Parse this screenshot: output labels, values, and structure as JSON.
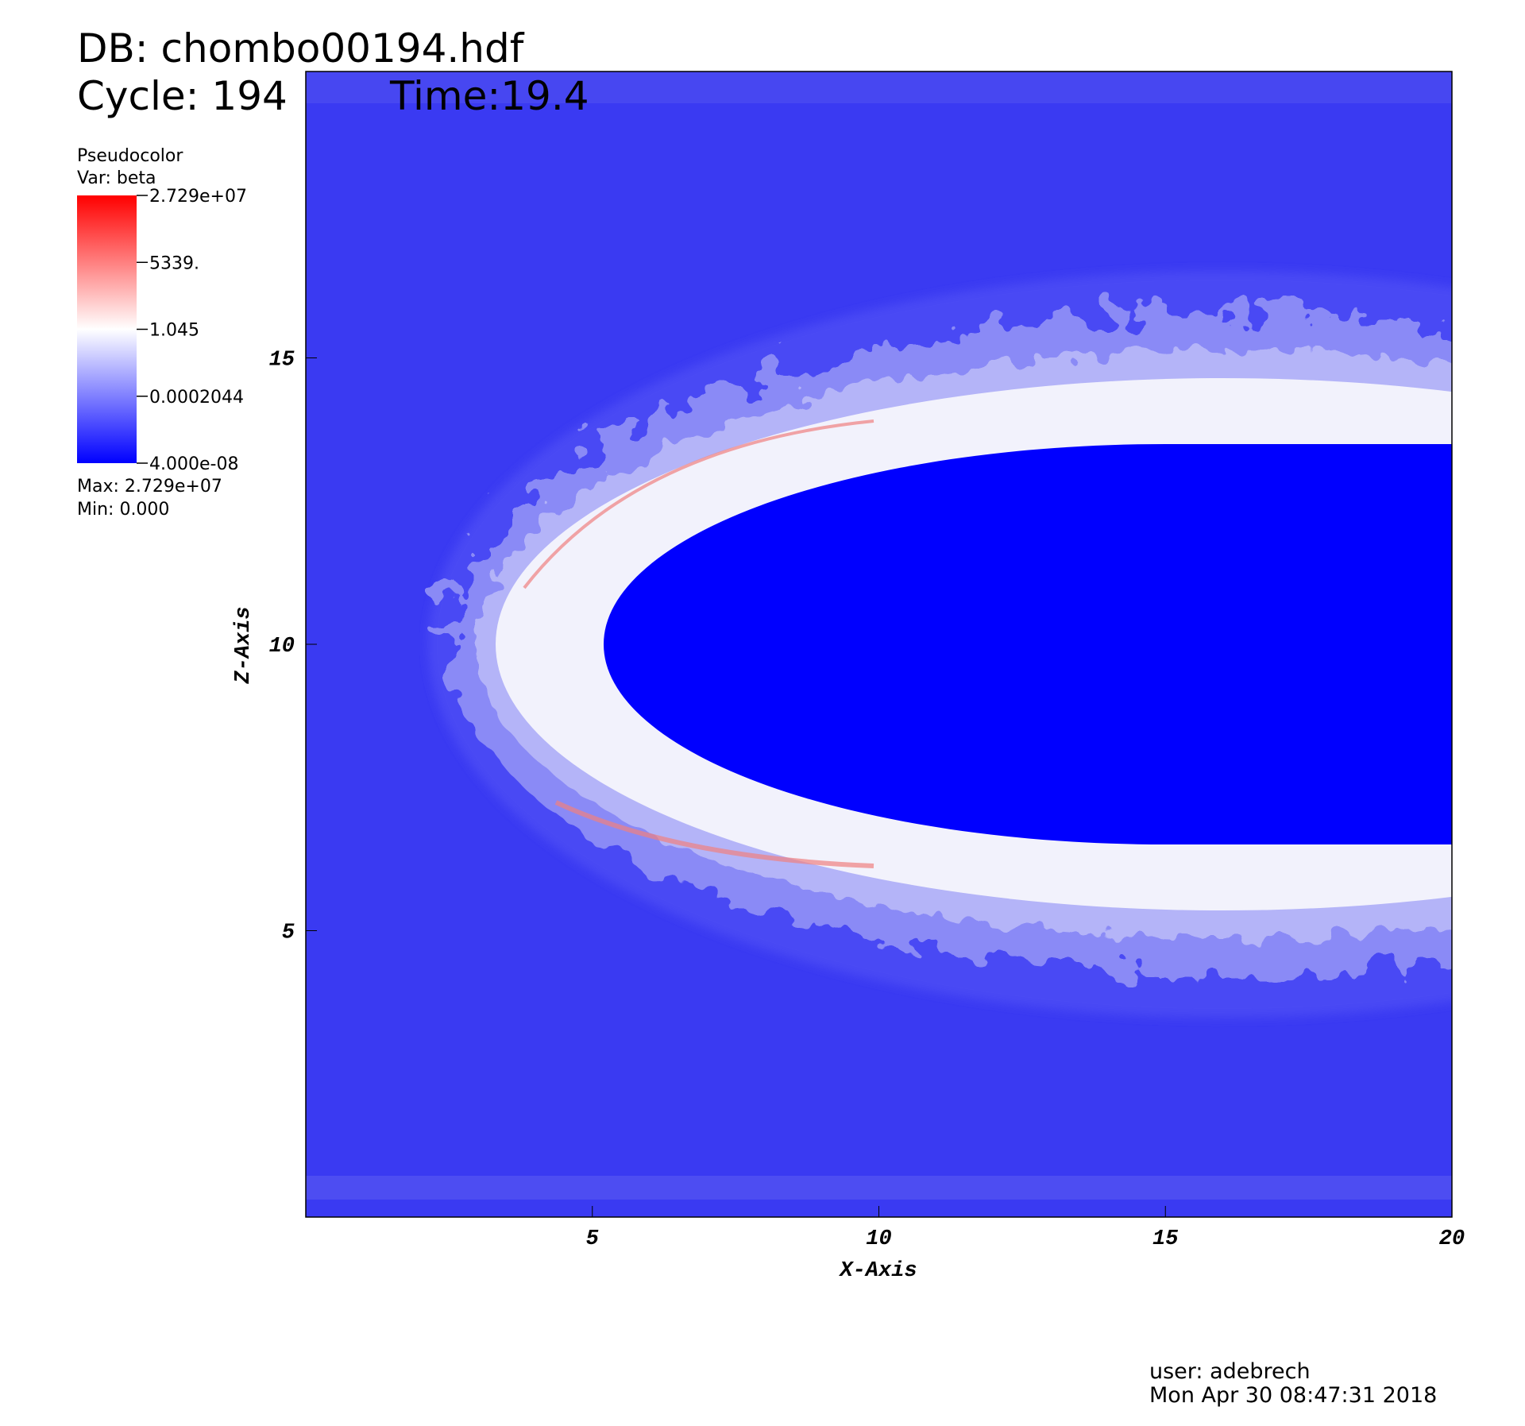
{
  "chart_data": {
    "type": "pseudocolor",
    "title": "DB: chombo00194.hdf",
    "cycle": "Cycle: 194",
    "time": "Time:19.4",
    "x_label": "X-Axis",
    "y_label": "Z-Axis",
    "xlim": [
      0,
      20
    ],
    "xticks": [
      5,
      10,
      15,
      20
    ],
    "ylim": [
      0,
      20
    ],
    "yticks": [
      5,
      10,
      15
    ],
    "legend": {
      "plot": "Pseudocolor",
      "variable": "Var: beta",
      "log_scale": true,
      "colormap": [
        "#0000ff",
        "#ffffff",
        "#ff0000"
      ],
      "lim": [
        4e-08,
        27290000
      ],
      "ticks": [
        {
          "value": 27290000,
          "label": "2.729e+07"
        },
        {
          "value": 5339,
          "label": "5339."
        },
        1.045,
        0.0002044,
        {
          "value": 4e-08,
          "label": "4.000e-08"
        }
      ],
      "max": "Max:  2.729e+07",
      "min": "Min:  0.000"
    },
    "user": "user: adebrech",
    "date": "Mon Apr 30 08:47:31 2018"
  }
}
